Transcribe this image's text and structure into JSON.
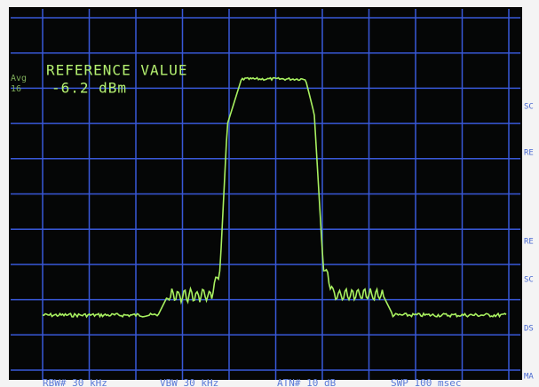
{
  "left_labels": {
    "mode": "Avg",
    "count": "16"
  },
  "reference": {
    "label": "REFERENCE VALUE",
    "value": "-6.2 dBm"
  },
  "settings": [
    "RBW# 30 kHz",
    "VBW 30 kHz",
    "ATN# 10 dB",
    "SWP 100 msec"
  ],
  "side_labels": [
    "SC",
    "RE",
    "RE",
    "SC",
    "DS",
    "MA"
  ]
}
